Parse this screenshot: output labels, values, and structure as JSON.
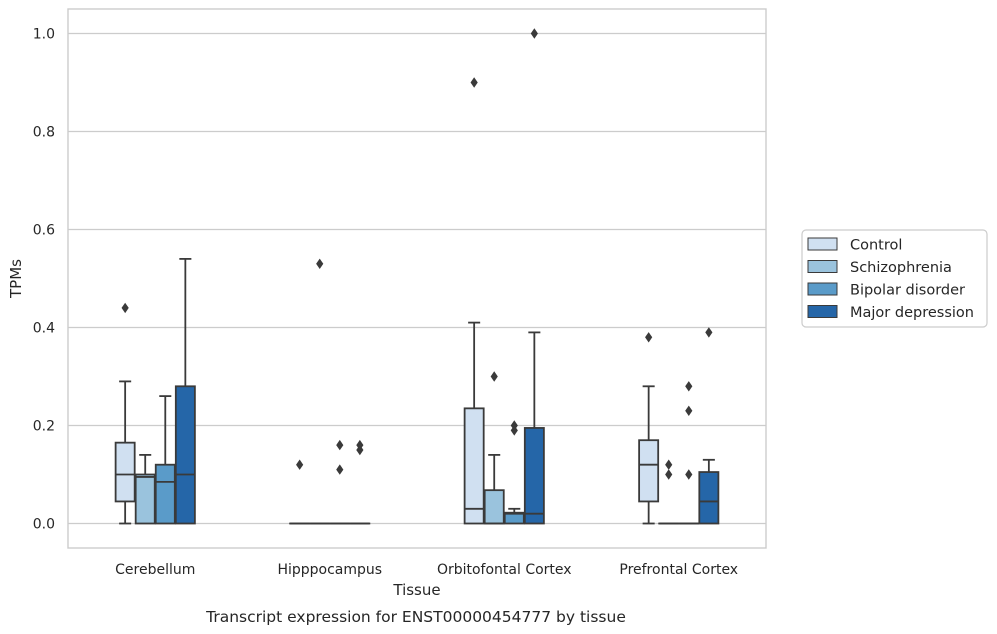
{
  "caption": "Transcript expression for ENST00000454777 by tissue",
  "chart_data": {
    "type": "boxplot",
    "xlabel": "Tissue",
    "ylabel": "TPMs",
    "ylim": [
      -0.05,
      1.05
    ],
    "yticks": [
      "0.0",
      "0.2",
      "0.4",
      "0.6",
      "0.8",
      "1.0"
    ],
    "grid": "horizontal",
    "legend_position": "right",
    "categories": [
      "Cerebellum",
      "Hipppocampus",
      "Orbitofontal Cortex",
      "Prefrontal Cortex"
    ],
    "series": [
      {
        "name": "Control",
        "color": "#d0e0f1",
        "boxes": [
          {
            "q1": 0.045,
            "median": 0.1,
            "q3": 0.165,
            "whisker_low": 0.0,
            "whisker_high": 0.29,
            "outliers": [
              0.44
            ]
          },
          {
            "q1": 0.0,
            "median": 0.0,
            "q3": 0.0,
            "whisker_low": 0.0,
            "whisker_high": 0.0,
            "outliers": [
              0.12
            ]
          },
          {
            "q1": 0.0,
            "median": 0.03,
            "q3": 0.235,
            "whisker_low": 0.0,
            "whisker_high": 0.41,
            "outliers": [
              0.9
            ]
          },
          {
            "q1": 0.045,
            "median": 0.12,
            "q3": 0.17,
            "whisker_low": 0.0,
            "whisker_high": 0.28,
            "outliers": [
              0.38
            ]
          }
        ]
      },
      {
        "name": "Schizophrenia",
        "color": "#9ac3dd",
        "boxes": [
          {
            "q1": 0.0,
            "median": 0.095,
            "q3": 0.1,
            "whisker_low": 0.0,
            "whisker_high": 0.14,
            "outliers": []
          },
          {
            "q1": 0.0,
            "median": 0.0,
            "q3": 0.0,
            "whisker_low": 0.0,
            "whisker_high": 0.0,
            "outliers": [
              0.53
            ]
          },
          {
            "q1": 0.0,
            "median": 0.0,
            "q3": 0.068,
            "whisker_low": 0.0,
            "whisker_high": 0.14,
            "outliers": [
              0.3
            ]
          },
          {
            "q1": 0.0,
            "median": 0.0,
            "q3": 0.0,
            "whisker_low": 0.0,
            "whisker_high": 0.0,
            "outliers": [
              0.1,
              0.12
            ]
          }
        ]
      },
      {
        "name": "Bipolar disorder",
        "color": "#5a9bc9",
        "boxes": [
          {
            "q1": 0.0,
            "median": 0.085,
            "q3": 0.12,
            "whisker_low": 0.0,
            "whisker_high": 0.26,
            "outliers": []
          },
          {
            "q1": 0.0,
            "median": 0.0,
            "q3": 0.0,
            "whisker_low": 0.0,
            "whisker_high": 0.0,
            "outliers": [
              0.11,
              0.16
            ]
          },
          {
            "q1": 0.0,
            "median": 0.02,
            "q3": 0.022,
            "whisker_low": 0.0,
            "whisker_high": 0.03,
            "outliers": [
              0.19,
              0.2
            ]
          },
          {
            "q1": 0.0,
            "median": 0.0,
            "q3": 0.0,
            "whisker_low": 0.0,
            "whisker_high": 0.0,
            "outliers": [
              0.1,
              0.23,
              0.28
            ]
          }
        ]
      },
      {
        "name": "Major depression",
        "color": "#2566a8",
        "boxes": [
          {
            "q1": 0.0,
            "median": 0.1,
            "q3": 0.28,
            "whisker_low": 0.0,
            "whisker_high": 0.54,
            "outliers": []
          },
          {
            "q1": 0.0,
            "median": 0.0,
            "q3": 0.0,
            "whisker_low": 0.0,
            "whisker_high": 0.0,
            "outliers": [
              0.15,
              0.16
            ]
          },
          {
            "q1": 0.0,
            "median": 0.02,
            "q3": 0.195,
            "whisker_low": 0.0,
            "whisker_high": 0.39,
            "outliers": [
              1.0
            ]
          },
          {
            "q1": 0.0,
            "median": 0.045,
            "q3": 0.105,
            "whisker_low": 0.0,
            "whisker_high": 0.13,
            "outliers": [
              0.39
            ]
          }
        ]
      }
    ]
  }
}
